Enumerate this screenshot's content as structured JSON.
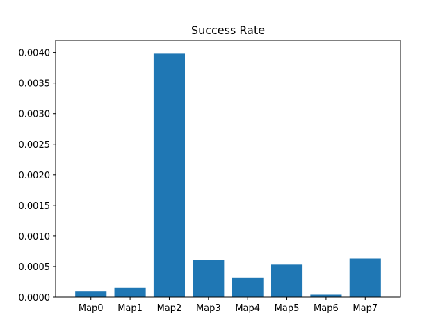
{
  "chart_data": {
    "type": "bar",
    "title": "Success Rate",
    "xlabel": "",
    "ylabel": "",
    "categories": [
      "Map0",
      "Map1",
      "Map2",
      "Map3",
      "Map4",
      "Map5",
      "Map6",
      "Map7"
    ],
    "values": [
      0.0001,
      0.00015,
      0.00398,
      0.00061,
      0.00032,
      0.00053,
      4e-05,
      0.00063
    ],
    "ylim": [
      0,
      0.0042
    ],
    "yticks": [
      0.0,
      0.0005,
      0.001,
      0.0015,
      0.002,
      0.0025,
      0.003,
      0.0035,
      0.004
    ],
    "ytick_labels": [
      "0.0000",
      "0.0005",
      "0.0010",
      "0.0015",
      "0.0020",
      "0.0025",
      "0.0030",
      "0.0035",
      "0.0040"
    ],
    "bar_color": "#1f77b4",
    "grid": false,
    "legend": "none"
  }
}
